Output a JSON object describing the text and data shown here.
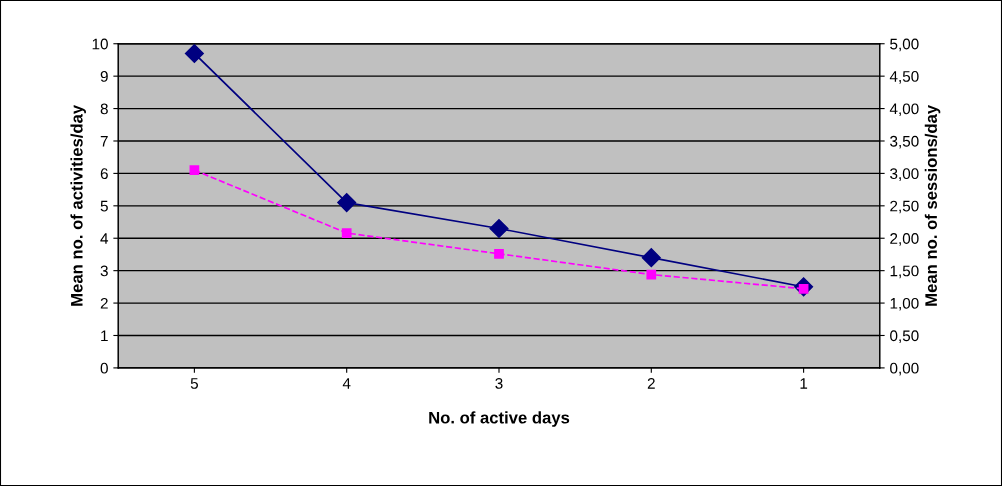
{
  "chart_data": {
    "type": "line",
    "xlabel": "No. of active days",
    "ylabel": "Mean no. of activities/day",
    "y2label": "Mean no. of sessions/day",
    "categories": [
      "5",
      "4",
      "3",
      "2",
      "1"
    ],
    "series": [
      {
        "color": "#000080",
        "marker": "diamond",
        "line_style": "solid",
        "values": [
          9.7,
          5.1,
          4.3,
          3.4,
          2.5
        ]
      },
      {
        "color": "#ff00ff",
        "marker": "square",
        "line_style": "dashed",
        "axis": "y2",
        "values": [
          3.05,
          2.08,
          1.76,
          1.44,
          1.22
        ]
      }
    ],
    "ylim": [
      0,
      10
    ],
    "yticks": [
      0,
      1,
      2,
      3,
      4,
      5,
      6,
      7,
      8,
      9,
      10
    ],
    "y2lim": [
      0,
      5
    ],
    "y2ticks": [
      {
        "value": 0,
        "label": "0,00"
      },
      {
        "value": 0.5,
        "label": "0,50"
      },
      {
        "value": 1,
        "label": "1,00"
      },
      {
        "value": 1.5,
        "label": "1,50"
      },
      {
        "value": 2,
        "label": "2,00"
      },
      {
        "value": 2.5,
        "label": "2,50"
      },
      {
        "value": 3,
        "label": "3,00"
      },
      {
        "value": 3.5,
        "label": "3,50"
      },
      {
        "value": 4,
        "label": "4,00"
      },
      {
        "value": 4.5,
        "label": "4,50"
      },
      {
        "value": 5,
        "label": "5,00"
      }
    ],
    "grid": "y",
    "legend": false
  }
}
